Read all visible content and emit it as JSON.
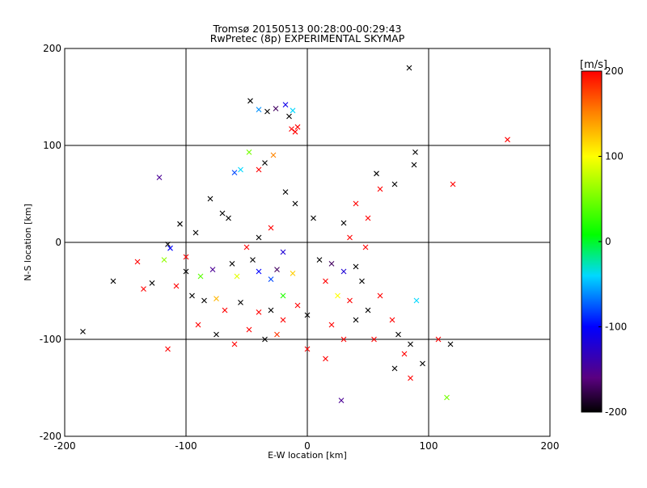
{
  "chart_data": {
    "type": "scatter",
    "title": "Tromsø 20150513 00:28:00-00:29:43",
    "subtitle": "RwPretec (8p) EXPERIMENTAL SKYMAP",
    "xlabel": "E-W location [km]",
    "ylabel": "N-S location [km]",
    "xlim": [
      -200,
      200
    ],
    "ylim": [
      -200,
      200
    ],
    "xticks": [
      "-200",
      "-100",
      "0",
      "100",
      "200"
    ],
    "yticks": [
      "-200",
      "-100",
      "0",
      "100",
      "200"
    ],
    "grid": true,
    "colorbar": {
      "label": "[m/s]",
      "range": [
        -200,
        200
      ],
      "ticks": [
        "-200",
        "-100",
        "0",
        "100",
        "200"
      ],
      "colormap": "rainbow: black-purple-blue-cyan-green-yellow-red"
    },
    "point_markers": [
      "plus (small)",
      "cross (large)"
    ],
    "points": [
      {
        "x": 84,
        "y": 180,
        "v": -200,
        "m": "x"
      },
      {
        "x": 165,
        "y": 106,
        "v": 200,
        "m": "x"
      },
      {
        "x": -47,
        "y": 146,
        "v": -200,
        "m": "x"
      },
      {
        "x": -40,
        "y": 137,
        "v": -60,
        "m": "x"
      },
      {
        "x": -33,
        "y": 135,
        "v": -200,
        "m": "x"
      },
      {
        "x": -26,
        "y": 138,
        "v": -170,
        "m": "x"
      },
      {
        "x": -18,
        "y": 142,
        "v": -110,
        "m": "x"
      },
      {
        "x": -12,
        "y": 136,
        "v": -40,
        "m": "x"
      },
      {
        "x": -15,
        "y": 130,
        "v": -200,
        "m": "x"
      },
      {
        "x": -13,
        "y": 117,
        "v": 200,
        "m": "x"
      },
      {
        "x": -10,
        "y": 114,
        "v": 200,
        "m": "x"
      },
      {
        "x": -8,
        "y": 119,
        "v": 200,
        "m": "x"
      },
      {
        "x": -122,
        "y": 67,
        "v": -150,
        "m": "x"
      },
      {
        "x": -185,
        "y": -92,
        "v": -200,
        "m": "x"
      },
      {
        "x": -105,
        "y": 19,
        "v": -200,
        "m": "x"
      },
      {
        "x": 89,
        "y": 93,
        "v": -200,
        "m": "x"
      },
      {
        "x": 118,
        "y": -105,
        "v": -200,
        "m": "x"
      },
      {
        "x": 115,
        "y": -160,
        "v": 50,
        "m": "x"
      },
      {
        "x": 120,
        "y": 60,
        "v": 200,
        "m": "x"
      },
      {
        "x": 72,
        "y": 60,
        "v": -200,
        "m": "x"
      },
      {
        "x": 57,
        "y": 71,
        "v": -200,
        "m": "x"
      },
      {
        "x": 88,
        "y": 80,
        "v": -200,
        "m": "x"
      },
      {
        "x": 90,
        "y": -60,
        "v": -40,
        "m": "x"
      },
      {
        "x": 108,
        "y": -100,
        "v": 200,
        "m": "x"
      },
      {
        "x": 72,
        "y": -130,
        "v": -200,
        "m": "x"
      },
      {
        "x": 85,
        "y": -140,
        "v": 200,
        "m": "x"
      },
      {
        "x": 28,
        "y": -163,
        "v": -150,
        "m": "x"
      },
      {
        "x": -55,
        "y": 75,
        "v": -40,
        "m": "x"
      },
      {
        "x": -60,
        "y": 72,
        "v": -80,
        "m": "x"
      },
      {
        "x": -35,
        "y": 82,
        "v": -200,
        "m": "x"
      },
      {
        "x": -40,
        "y": 75,
        "v": 200,
        "m": "x"
      },
      {
        "x": -28,
        "y": 90,
        "v": 150,
        "m": "x"
      },
      {
        "x": -48,
        "y": 93,
        "v": 50,
        "m": "x"
      },
      {
        "x": -18,
        "y": 52,
        "v": -200,
        "m": "x"
      },
      {
        "x": -80,
        "y": 45,
        "v": -200,
        "m": "x"
      },
      {
        "x": -70,
        "y": 30,
        "v": -200,
        "m": "x"
      },
      {
        "x": -92,
        "y": 10,
        "v": -200,
        "m": "x"
      },
      {
        "x": -115,
        "y": -2,
        "v": -200,
        "m": "x"
      },
      {
        "x": -118,
        "y": -18,
        "v": 60,
        "m": "x"
      },
      {
        "x": -113,
        "y": -6,
        "v": -100,
        "m": "x"
      },
      {
        "x": -100,
        "y": -30,
        "v": -200,
        "m": "x"
      },
      {
        "x": -88,
        "y": -35,
        "v": 40,
        "m": "x"
      },
      {
        "x": -78,
        "y": -28,
        "v": -150,
        "m": "x"
      },
      {
        "x": -62,
        "y": -22,
        "v": -200,
        "m": "x"
      },
      {
        "x": -58,
        "y": -35,
        "v": 90,
        "m": "x"
      },
      {
        "x": -45,
        "y": -18,
        "v": -200,
        "m": "x"
      },
      {
        "x": -40,
        "y": -30,
        "v": -100,
        "m": "x"
      },
      {
        "x": -30,
        "y": -38,
        "v": -80,
        "m": "x"
      },
      {
        "x": -25,
        "y": -28,
        "v": -170,
        "m": "x"
      },
      {
        "x": -12,
        "y": -32,
        "v": 120,
        "m": "x"
      },
      {
        "x": -20,
        "y": -55,
        "v": 20,
        "m": "x"
      },
      {
        "x": -108,
        "y": -45,
        "v": 200,
        "m": "x"
      },
      {
        "x": -128,
        "y": -42,
        "v": -200,
        "m": "x"
      },
      {
        "x": -135,
        "y": -48,
        "v": 200,
        "m": "x"
      },
      {
        "x": -95,
        "y": -55,
        "v": -200,
        "m": "x"
      },
      {
        "x": -85,
        "y": -60,
        "v": -200,
        "m": "x"
      },
      {
        "x": -75,
        "y": -58,
        "v": 130,
        "m": "x"
      },
      {
        "x": -68,
        "y": -70,
        "v": 200,
        "m": "x"
      },
      {
        "x": -55,
        "y": -62,
        "v": -200,
        "m": "x"
      },
      {
        "x": -40,
        "y": -72,
        "v": 200,
        "m": "x"
      },
      {
        "x": -30,
        "y": -70,
        "v": -200,
        "m": "x"
      },
      {
        "x": -20,
        "y": -80,
        "v": 200,
        "m": "x"
      },
      {
        "x": -8,
        "y": -65,
        "v": 200,
        "m": "x"
      },
      {
        "x": 0,
        "y": -75,
        "v": -200,
        "m": "x"
      },
      {
        "x": -48,
        "y": -90,
        "v": 200,
        "m": "x"
      },
      {
        "x": -35,
        "y": -100,
        "v": -200,
        "m": "x"
      },
      {
        "x": -25,
        "y": -95,
        "v": 180,
        "m": "x"
      },
      {
        "x": -60,
        "y": -105,
        "v": 200,
        "m": "x"
      },
      {
        "x": -75,
        "y": -95,
        "v": -200,
        "m": "x"
      },
      {
        "x": -90,
        "y": -85,
        "v": 200,
        "m": "x"
      },
      {
        "x": -115,
        "y": -110,
        "v": 200,
        "m": "x"
      },
      {
        "x": -160,
        "y": -40,
        "v": -200,
        "m": "x"
      },
      {
        "x": 10,
        "y": -18,
        "v": -200,
        "m": "x"
      },
      {
        "x": 20,
        "y": -22,
        "v": -170,
        "m": "x"
      },
      {
        "x": 30,
        "y": -30,
        "v": -120,
        "m": "x"
      },
      {
        "x": 40,
        "y": -25,
        "v": -200,
        "m": "x"
      },
      {
        "x": 45,
        "y": -40,
        "v": -200,
        "m": "x"
      },
      {
        "x": 15,
        "y": -40,
        "v": 200,
        "m": "x"
      },
      {
        "x": 25,
        "y": -55,
        "v": 100,
        "m": "x"
      },
      {
        "x": 35,
        "y": -60,
        "v": 200,
        "m": "x"
      },
      {
        "x": 50,
        "y": -70,
        "v": -200,
        "m": "x"
      },
      {
        "x": 60,
        "y": -55,
        "v": 200,
        "m": "x"
      },
      {
        "x": 70,
        "y": -80,
        "v": 200,
        "m": "x"
      },
      {
        "x": 20,
        "y": -85,
        "v": 200,
        "m": "x"
      },
      {
        "x": 30,
        "y": -100,
        "v": 200,
        "m": "x"
      },
      {
        "x": 15,
        "y": -120,
        "v": 200,
        "m": "x"
      },
      {
        "x": 0,
        "y": -110,
        "v": 200,
        "m": "x"
      },
      {
        "x": 80,
        "y": -115,
        "v": 200,
        "m": "x"
      },
      {
        "x": 95,
        "y": -125,
        "v": -200,
        "m": "x"
      },
      {
        "x": 60,
        "y": 55,
        "v": 200,
        "m": "x"
      },
      {
        "x": 40,
        "y": 40,
        "v": 200,
        "m": "x"
      },
      {
        "x": 50,
        "y": 25,
        "v": 200,
        "m": "x"
      },
      {
        "x": 30,
        "y": 20,
        "v": -200,
        "m": "x"
      },
      {
        "x": 35,
        "y": 5,
        "v": 200,
        "m": "x"
      },
      {
        "x": 48,
        "y": -5,
        "v": 200,
        "m": "x"
      },
      {
        "x": -30,
        "y": 15,
        "v": 200,
        "m": "x"
      },
      {
        "x": -40,
        "y": 5,
        "v": -200,
        "m": "x"
      },
      {
        "x": -50,
        "y": -5,
        "v": 200,
        "m": "x"
      },
      {
        "x": -20,
        "y": -10,
        "v": -120,
        "m": "x"
      },
      {
        "x": 5,
        "y": 25,
        "v": -200,
        "m": "x"
      },
      {
        "x": -10,
        "y": 40,
        "v": -200,
        "m": "x"
      },
      {
        "x": -65,
        "y": 25,
        "v": -200,
        "m": "x"
      },
      {
        "x": -100,
        "y": -15,
        "v": 200,
        "m": "x"
      },
      {
        "x": 40,
        "y": -80,
        "v": -200,
        "m": "x"
      },
      {
        "x": 55,
        "y": -100,
        "v": 200,
        "m": "x"
      },
      {
        "x": 85,
        "y": -105,
        "v": -200,
        "m": "x"
      },
      {
        "x": -140,
        "y": -20,
        "v": 200,
        "m": "x"
      },
      {
        "x": 75,
        "y": -95,
        "v": -200,
        "m": "x"
      }
    ]
  }
}
